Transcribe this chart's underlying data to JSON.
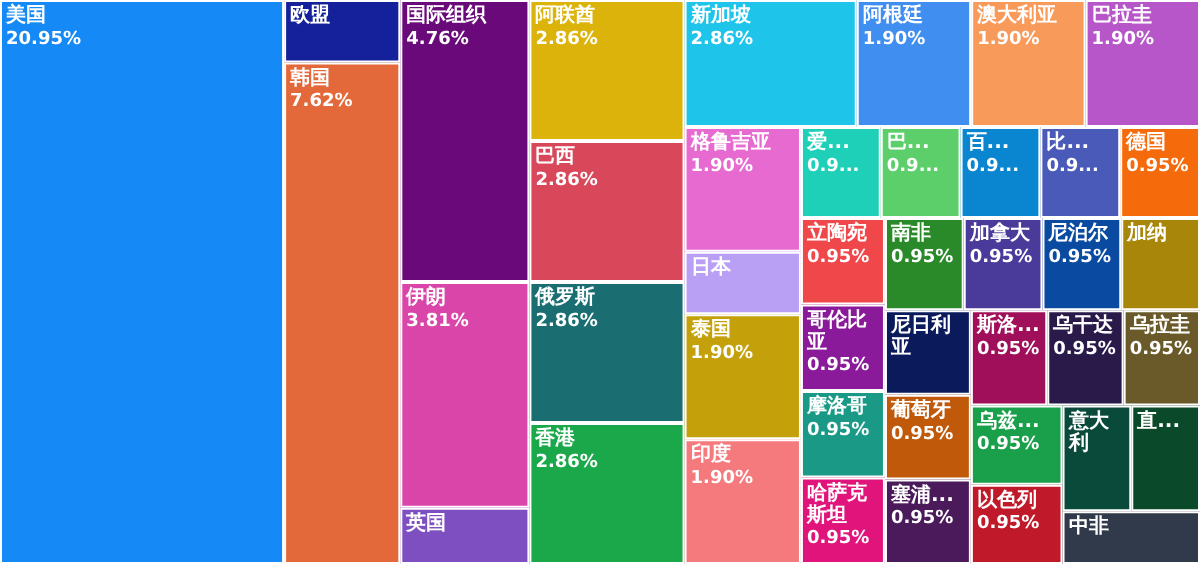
{
  "chart_data": {
    "type": "other",
    "categories": [
      "美国",
      "欧盟",
      "韩国",
      "国际组织",
      "伊朗",
      "英国",
      "阿联酋",
      "巴西",
      "俄罗斯",
      "香港",
      "新加坡",
      "阿根廷",
      "澳大利亚",
      "巴拉圭",
      "格鲁吉亚",
      "日本",
      "泰国",
      "印度",
      "爱...",
      "巴...",
      "百...",
      "比...",
      "德国",
      "立陶宛",
      "哥伦比亚",
      "摩洛哥",
      "哈萨克斯坦",
      "南非",
      "加拿大",
      "尼泊尔",
      "加纳",
      "尼日利亚",
      "葡萄牙",
      "塞浦...",
      "斯洛...",
      "乌干达",
      "乌拉圭",
      "乌兹...",
      "以色列",
      "意大利",
      "直...",
      "中非"
    ],
    "values": [
      20.95,
      null,
      7.62,
      4.76,
      3.81,
      null,
      2.86,
      2.86,
      2.86,
      2.86,
      2.86,
      1.9,
      1.9,
      1.9,
      1.9,
      null,
      1.9,
      1.9,
      null,
      null,
      null,
      null,
      0.95,
      0.95,
      0.95,
      0.95,
      0.95,
      0.95,
      0.95,
      0.95,
      null,
      null,
      0.95,
      0.95,
      0.95,
      0.95,
      0.95,
      0.95,
      0.95,
      null,
      null,
      null
    ],
    "value_labels": [
      "20.95%",
      null,
      "7.62%",
      "4.76%",
      "3.81%",
      null,
      "2.86%",
      "2.86%",
      "2.86%",
      "2.86%",
      "2.86%",
      "1.90%",
      "1.90%",
      "1.90%",
      "1.90%",
      null,
      "1.90%",
      "1.90%",
      "0.9...",
      "0.9...",
      "0.9...",
      "0.9...",
      "0.95%",
      "0.95%",
      "0.95%",
      "0.95%",
      "0.95%",
      "0.95%",
      "0.95%",
      "0.95%",
      null,
      null,
      "0.95%",
      "0.95%",
      "0.95%",
      "0.95%",
      "0.95%",
      "0.95%",
      "0.95%",
      null,
      null,
      null
    ],
    "colors": [
      "#1589f5",
      "#14219a",
      "#e4693a",
      "#6a0a7a",
      "#d945a8",
      "#7d4fc0",
      "#dcb30a",
      "#d8485a",
      "#1a6e72",
      "#1aa84a",
      "#1ec4ea",
      "#3f8ef0",
      "#f79a5a",
      "#b656c8",
      "#e66ad0",
      "#b9a0f5",
      "#c4a10a",
      "#f47a7e",
      "#1fd0b8",
      "#5ccf6a",
      "#0a86d0",
      "#4a5ab8",
      "#f56a0a",
      "#f0474a",
      "#8a1a9a",
      "#1a9a86",
      "#e0147a",
      "#2a8a2a",
      "#4a3a9a",
      "#0a4aa0",
      "#a8860a",
      "#0a1a5a",
      "#c05a0a",
      "#4a1a5a",
      "#a0105a",
      "#2a1a4a",
      "#6a5a2a",
      "#1aa04a",
      "#c01a2a",
      "#0a4a3a",
      "#0a4a2a",
      "#303a4a"
    ]
  }
}
